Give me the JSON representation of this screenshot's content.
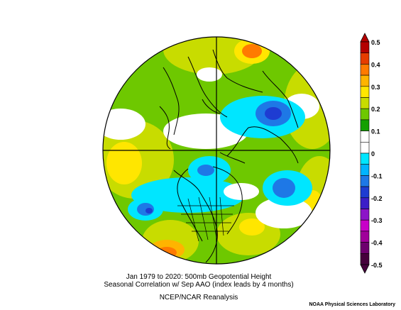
{
  "caption": {
    "line1": "Jan 1979 to 2020: 500mb Geopotential Height",
    "line2": "Seasonal Correlation w/ Sep AAO (index leads by 4 months)",
    "line3": "NCEP/NCAR Reanalysis"
  },
  "credit": "NOAA Physical Sciences Laboratory",
  "colorbar": {
    "labels": [
      "0.5",
      "0.4",
      "0.3",
      "0.2",
      "0.1",
      "0",
      "-0.1",
      "-0.2",
      "-0.3",
      "-0.4",
      "-0.5"
    ],
    "colors": [
      "#b40000",
      "#e63c00",
      "#ff7a00",
      "#ffb400",
      "#ffe600",
      "#c8dc00",
      "#6ec800",
      "#14a000",
      "#ffffff",
      "#ffffff",
      "#00e6ff",
      "#00b4ff",
      "#1e78e6",
      "#1e3cd2",
      "#3c1ec8",
      "#8c14c8",
      "#c800c8",
      "#a0009a",
      "#6e006e",
      "#46003c"
    ]
  },
  "palette": {
    "positive_low": "#6ec800",
    "positive_mid": "#c8dc00",
    "positive_high": "#ffb400",
    "negative_low": "#00e6ff",
    "negative_mid": "#1e78e6",
    "negative_high": "#1e3cd2"
  }
}
